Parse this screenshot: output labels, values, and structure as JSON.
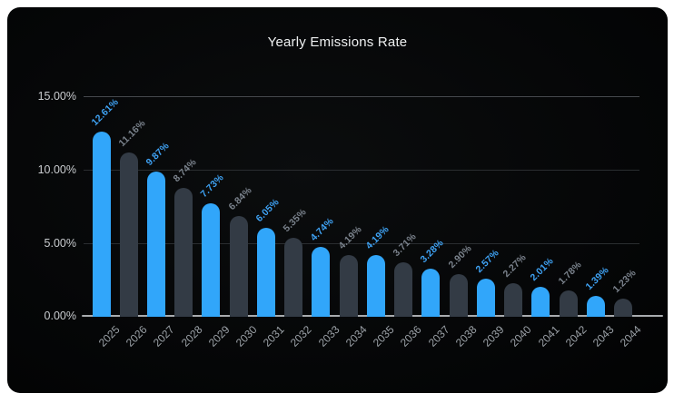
{
  "window": {
    "outer_background": "#ffffff",
    "card_background": "#060809"
  },
  "chart_data": {
    "type": "bar",
    "title": "Yearly Emissions Rate",
    "categories": [
      "2025",
      "2026",
      "2027",
      "2028",
      "2029",
      "2030",
      "2031",
      "2032",
      "2033",
      "2034",
      "2035",
      "2036",
      "2037",
      "2038",
      "2039",
      "2040",
      "2041",
      "2042",
      "2043",
      "2044"
    ],
    "values": [
      12.61,
      11.16,
      9.87,
      8.74,
      7.73,
      6.84,
      6.05,
      5.35,
      4.74,
      4.19,
      4.19,
      3.71,
      3.28,
      2.9,
      2.57,
      2.27,
      2.01,
      1.78,
      1.39,
      1.23
    ],
    "bar_labels": [
      "12.61%",
      "11.16%",
      "9.87%",
      "8.74%",
      "7.73%",
      "6.84%",
      "6.05%",
      "5.35%",
      "4.74%",
      "4.19%",
      "4.19%",
      "3.71%",
      "3.28%",
      "2.90%",
      "2.57%",
      "2.27%",
      "2.01%",
      "1.78%",
      "1.39%",
      "1.23%"
    ],
    "xlabel": "",
    "ylabel": "",
    "ylim": [
      0,
      15
    ],
    "grid": true,
    "legend": false,
    "y_ticks": [
      {
        "label": "0.00%",
        "value": 0
      },
      {
        "label": "5.00%",
        "value": 5
      },
      {
        "label": "10.00%",
        "value": 10
      },
      {
        "label": "15.00%",
        "value": 15
      }
    ],
    "colors": {
      "bar_primary": "#31a6fa",
      "bar_secondary": "#333b45",
      "label_primary": "#3fa3f5",
      "label_secondary": "#7b838d",
      "ytick_text": "#c9cccf",
      "xtick_text": "#9ca2a8",
      "gridline": "#2a2d30",
      "gridline_top": "#46494d",
      "axis_line": "#a9acaf",
      "title_text": "#eef0f1"
    }
  }
}
